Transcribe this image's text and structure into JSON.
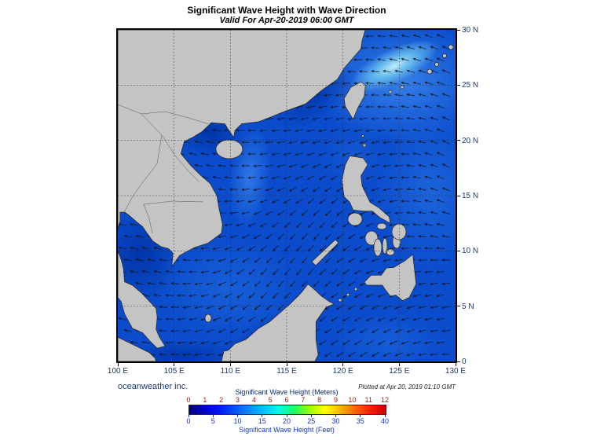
{
  "header": {
    "title": "Significant Wave Height with Wave Direction",
    "subtitle": "Valid For Apr-20-2019 06:00 GMT"
  },
  "footer": {
    "credit": "oceanweather inc.",
    "plotted_note": "Plotted at Apr 20, 2019 01:10 GMT"
  },
  "axes": {
    "lon_ticks": [
      "100 E",
      "105 E",
      "110 E",
      "115 E",
      "120 E",
      "125 E",
      "130 E"
    ],
    "lat_ticks": [
      "30 N",
      "25 N",
      "20 N",
      "15 N",
      "10 N",
      "5 N",
      "0"
    ]
  },
  "colorbar": {
    "meters_label": "Significant Wave Height (Meters)",
    "feet_label": "Significant Wave Height (Feet)",
    "meters_ticks": [
      "0",
      "1",
      "2",
      "3",
      "4",
      "5",
      "6",
      "7",
      "8",
      "9",
      "10",
      "11",
      "12"
    ],
    "feet_ticks": [
      "0",
      "5",
      "10",
      "15",
      "20",
      "25",
      "30",
      "35",
      "40"
    ],
    "gradient": [
      "#000085",
      "#0000c8",
      "#0018ff",
      "#0050ff",
      "#0090ff",
      "#00c8ff",
      "#00ffe0",
      "#20ff60",
      "#a0ff00",
      "#ffff00",
      "#ffb400",
      "#ff6400",
      "#ff1e00",
      "#c80000"
    ]
  },
  "map_colors": {
    "ocean_base": "#0a4ccc",
    "land": "#c4c4c4",
    "coastline": "#222222",
    "high_wave_patch": "#b8ecf6",
    "grid": "#26262e",
    "arrow": "#10131f"
  }
}
